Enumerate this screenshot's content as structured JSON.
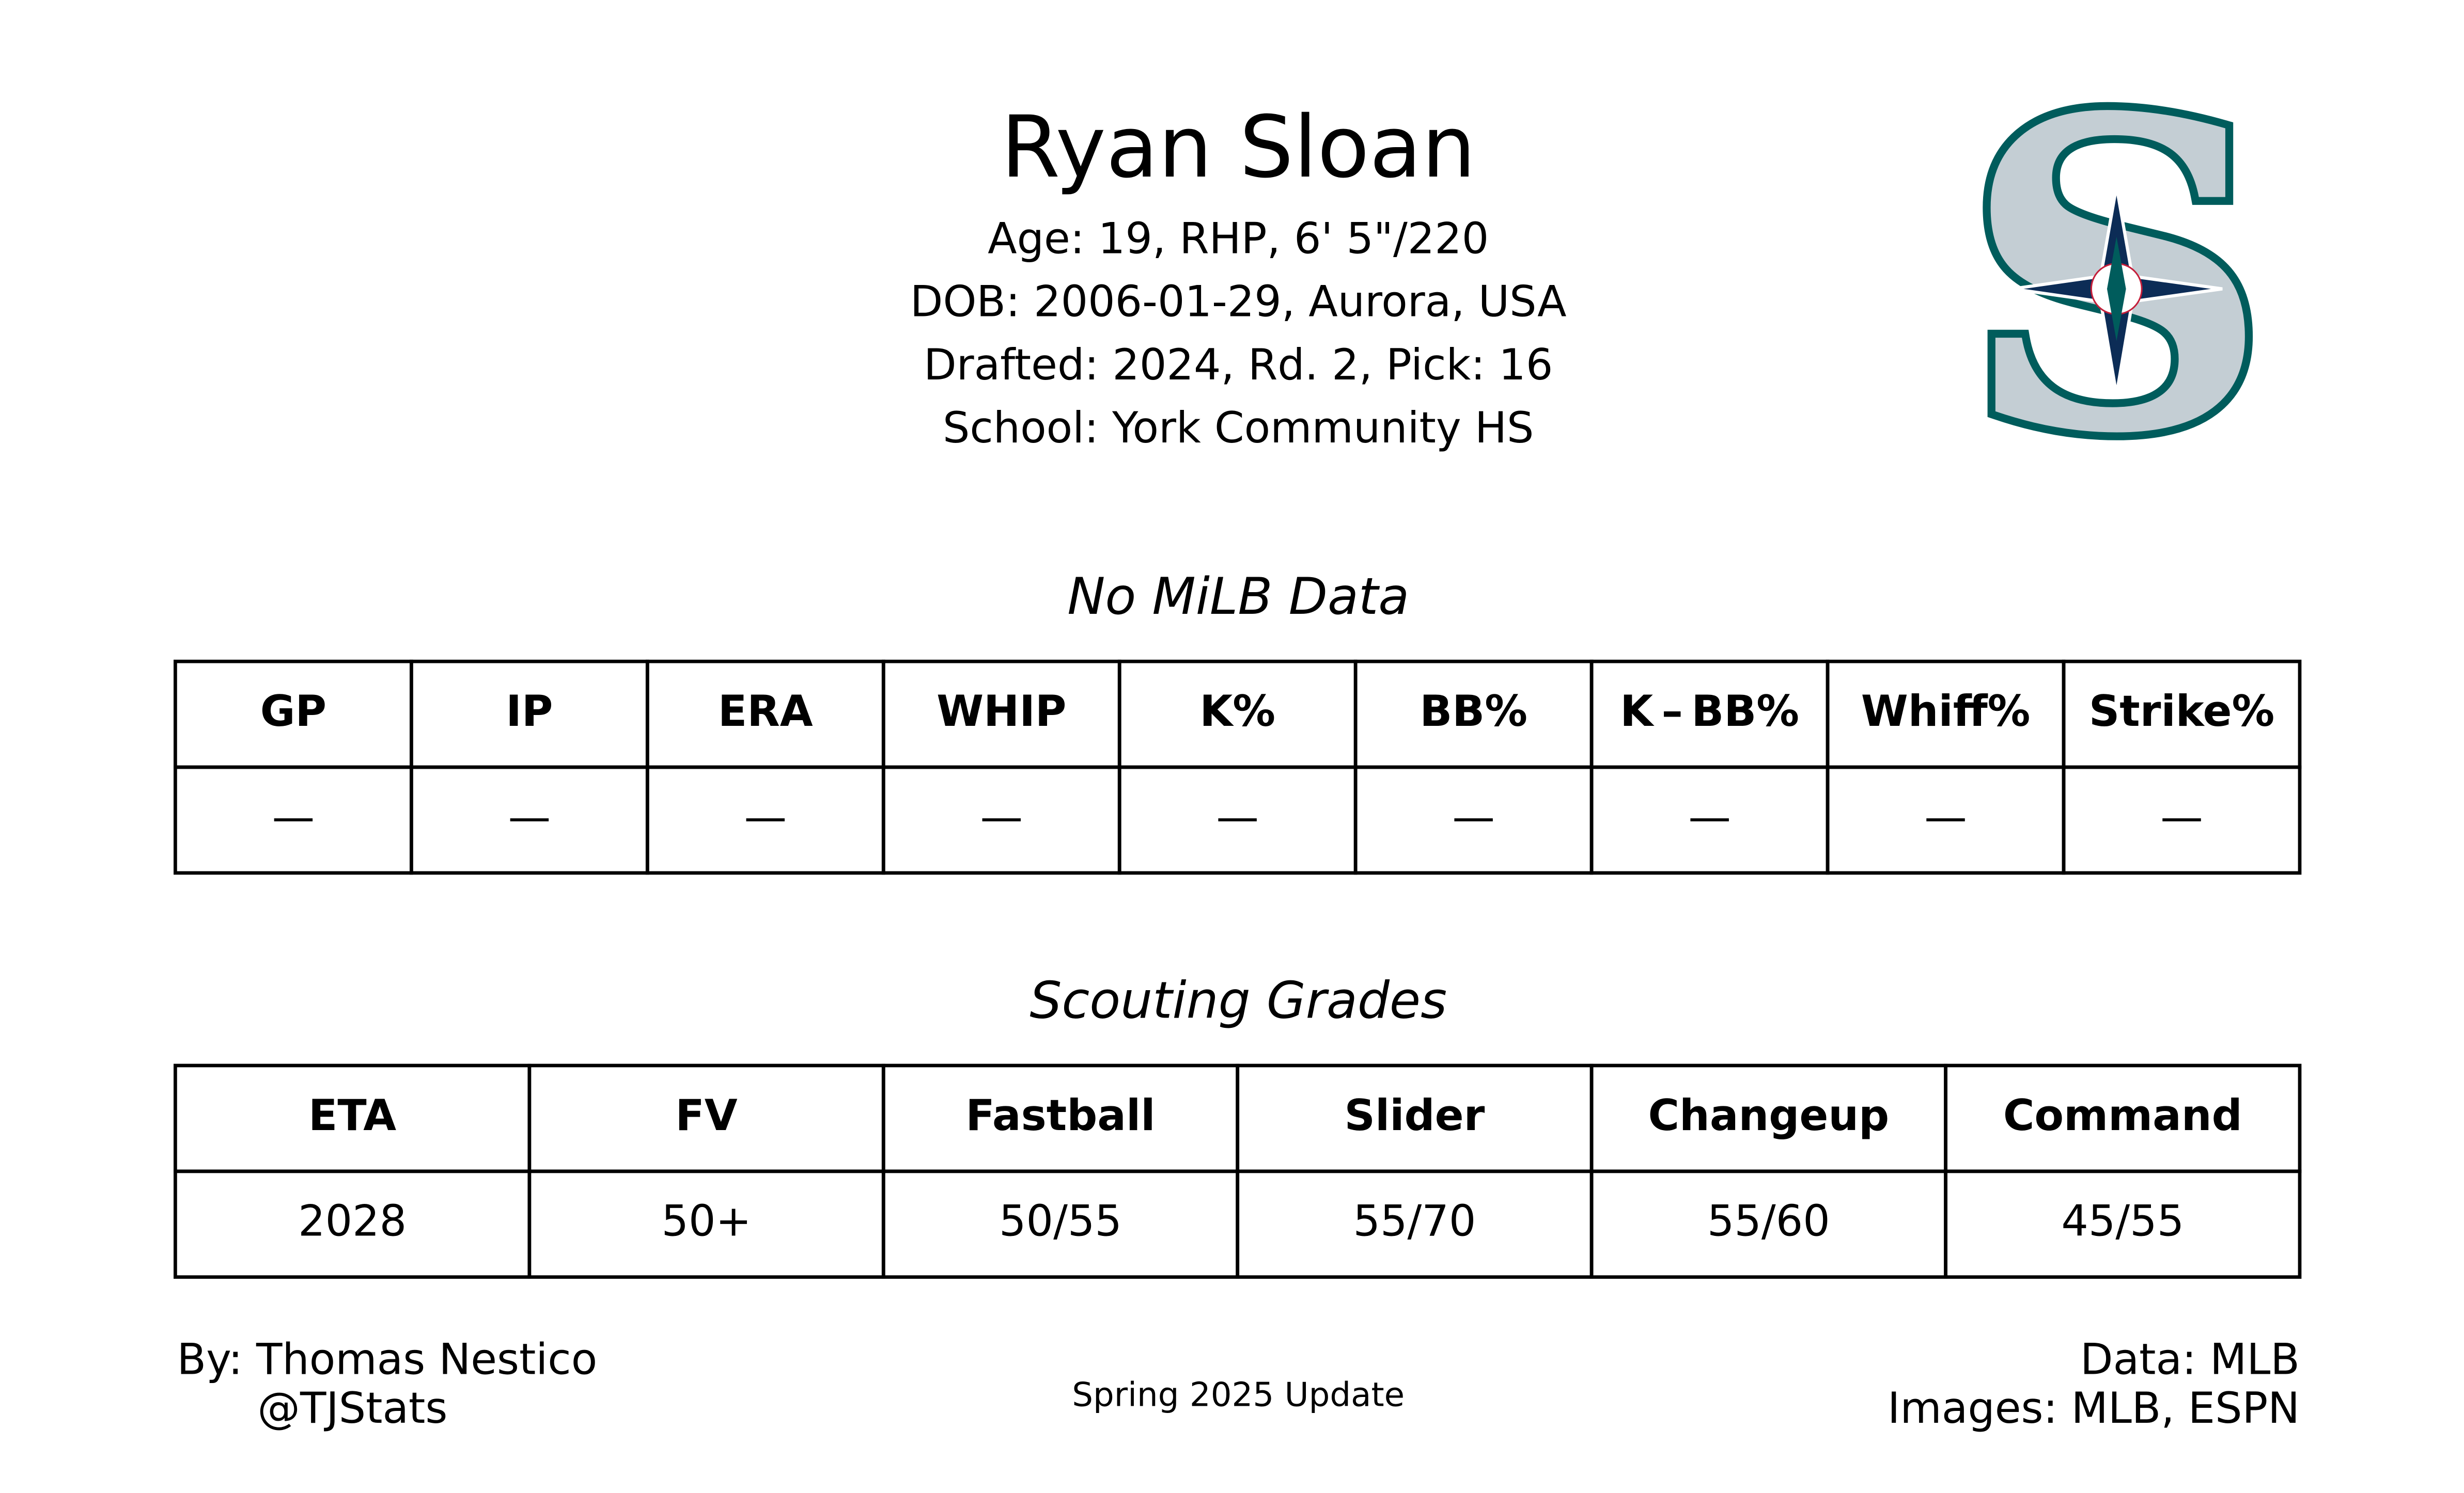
{
  "header": {
    "name": "Ryan Sloan",
    "details": [
      "Age: 19, RHP, 6' 5\"/220",
      "DOB: 2006-01-29, Aurora, USA",
      "Drafted: 2024, Rd. 2, Pick: 16",
      "School: York Community HS"
    ]
  },
  "stats": {
    "title": "No MiLB Data",
    "columns": [
      "GP",
      "IP",
      "ERA",
      "WHIP",
      "K%",
      "BB%",
      "K – BB%",
      "Whiff%",
      "Strike%"
    ],
    "rows": [
      [
        "—",
        "—",
        "—",
        "—",
        "—",
        "—",
        "—",
        "—",
        "—"
      ]
    ]
  },
  "grades": {
    "title": "Scouting Grades",
    "columns": [
      "ETA",
      "FV",
      "Fastball",
      "Slider",
      "Changeup",
      "Command"
    ],
    "rows": [
      [
        "2028",
        "50+",
        "50/55",
        "55/70",
        "55/60",
        "45/55"
      ]
    ]
  },
  "footer": {
    "author": "By: Thomas Nestico",
    "handle": "@TJStats",
    "update": "Spring 2025 Update",
    "data_source": "Data: MLB",
    "images_source": "Images: MLB, ESPN"
  }
}
